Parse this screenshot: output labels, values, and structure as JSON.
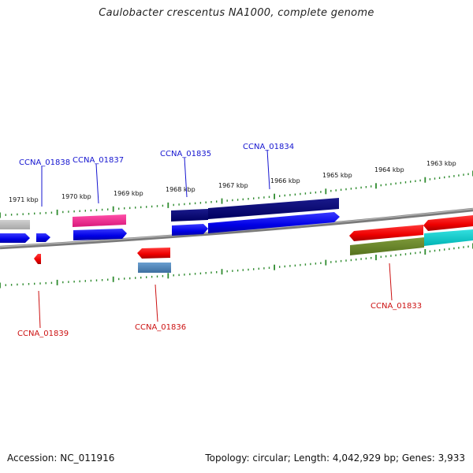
{
  "title": "Caulobacter crescentus NA1000, complete genome",
  "footer": {
    "accession": "Accession: NC_011916",
    "summary": "Topology: circular; Length: 4,042,929 bp; Genes: 3,933"
  },
  "kbp_ticks": [
    "1971 kbp",
    "1970 kbp",
    "1969 kbp",
    "1968 kbp",
    "1967 kbp",
    "1966 kbp",
    "1965 kbp",
    "1964 kbp",
    "1963 kbp"
  ],
  "gene_labels": {
    "ccna_01838": "CCNA_01838",
    "ccna_01837": "CCNA_01837",
    "ccna_01835": "CCNA_01835",
    "ccna_01834": "CCNA_01834",
    "ccna_01839": "CCNA_01839",
    "ccna_01836": "CCNA_01836",
    "ccna_01833": "CCNA_01833"
  },
  "colors": {
    "backbone": "#808080",
    "tick": "#2e8b2e",
    "forward_gene": "#0000ee",
    "reverse_gene": "#ee1111",
    "label_forward": "#1515d0",
    "label_reverse": "#cc1111"
  }
}
